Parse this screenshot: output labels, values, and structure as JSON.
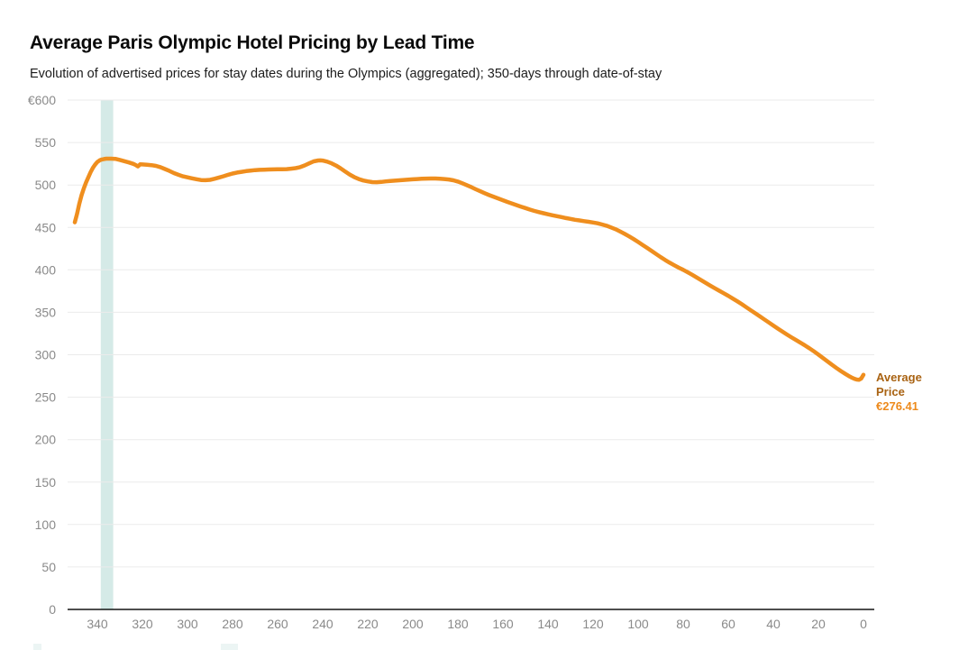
{
  "header": {
    "title": "Average Paris Olympic Hotel Pricing by Lead Time",
    "subtitle": "Evolution of advertised prices for stay dates during the Olympics (aggregated); 350-days through date-of-stay"
  },
  "end_label": {
    "line1": "Average",
    "line2": "Price",
    "value": "€276.41"
  },
  "colors": {
    "line": "#EF8E1E",
    "label_name": "#A96313",
    "label_value": "#ED8A1C",
    "band": "#D5EAE7",
    "grid": "#EBEBEB",
    "axis_line": "#141414",
    "tick_text": "#8A8A8A",
    "artifact": "#ECF5F4"
  },
  "chart_data": {
    "type": "line",
    "title": "Average Paris Olympic Hotel Pricing by Lead Time",
    "subtitle": "Evolution of advertised prices for stay dates during the Olympics (aggregated); 350-days through date-of-stay",
    "xlabel": "",
    "ylabel": "",
    "x_unit": "days before stay (lead time)",
    "x_direction": "descending",
    "xlim_lead_days": [
      350,
      0
    ],
    "ylim": [
      0,
      600
    ],
    "grid": "horizontal-only",
    "legend_position": "right-of-line-end",
    "x_ticks": [
      340,
      320,
      300,
      280,
      260,
      240,
      220,
      200,
      180,
      160,
      140,
      120,
      100,
      80,
      60,
      40,
      20,
      0
    ],
    "y_ticks": [
      {
        "value": 600,
        "label": "€600"
      },
      {
        "value": 550,
        "label": "550"
      },
      {
        "value": 500,
        "label": "500"
      },
      {
        "value": 450,
        "label": "450"
      },
      {
        "value": 400,
        "label": "400"
      },
      {
        "value": 350,
        "label": "350"
      },
      {
        "value": 300,
        "label": "300"
      },
      {
        "value": 250,
        "label": "250"
      },
      {
        "value": 200,
        "label": "200"
      },
      {
        "value": 150,
        "label": "150"
      },
      {
        "value": 100,
        "label": "100"
      },
      {
        "value": 50,
        "label": "50"
      },
      {
        "value": 0,
        "label": "0"
      }
    ],
    "highlight_band_leads": [
      338.5,
      333
    ],
    "series": [
      {
        "name": "Average Price",
        "final_value": 276.41,
        "points": [
          [
            350,
            456
          ],
          [
            349,
            466
          ],
          [
            348,
            478
          ],
          [
            347,
            488
          ],
          [
            346,
            496
          ],
          [
            345,
            503
          ],
          [
            344,
            509
          ],
          [
            343,
            515
          ],
          [
            342,
            520
          ],
          [
            341,
            524
          ],
          [
            340,
            527
          ],
          [
            339,
            529
          ],
          [
            338,
            530
          ],
          [
            337,
            530.6
          ],
          [
            336,
            531
          ],
          [
            334,
            531
          ],
          [
            332,
            530.8
          ],
          [
            330,
            529.5
          ],
          [
            328,
            528
          ],
          [
            326,
            526.5
          ],
          [
            324,
            524.8
          ],
          [
            323,
            523.5
          ],
          [
            322,
            521.8
          ],
          [
            321,
            524.3
          ],
          [
            320,
            524.2
          ],
          [
            318,
            523.8
          ],
          [
            316,
            523.3
          ],
          [
            314,
            522.5
          ],
          [
            312,
            521
          ],
          [
            310,
            518.8
          ],
          [
            308,
            516.5
          ],
          [
            306,
            514
          ],
          [
            304,
            512
          ],
          [
            302,
            510.2
          ],
          [
            300,
            509
          ],
          [
            298,
            507.8
          ],
          [
            296,
            506.8
          ],
          [
            294,
            505.8
          ],
          [
            292,
            505.6
          ],
          [
            290,
            506
          ],
          [
            288,
            507.3
          ],
          [
            286,
            508.8
          ],
          [
            284,
            510.3
          ],
          [
            282,
            512
          ],
          [
            280,
            513.4
          ],
          [
            278,
            514.6
          ],
          [
            276,
            515.5
          ],
          [
            274,
            516.3
          ],
          [
            272,
            516.9
          ],
          [
            270,
            517.5
          ],
          [
            268,
            517.8
          ],
          [
            266,
            518
          ],
          [
            264,
            518.2
          ],
          [
            262,
            518.3
          ],
          [
            260,
            518.5
          ],
          [
            258,
            518.6
          ],
          [
            256,
            518.7
          ],
          [
            254,
            519.2
          ],
          [
            252,
            519.8
          ],
          [
            250,
            521
          ],
          [
            248,
            523
          ],
          [
            246,
            525.5
          ],
          [
            244,
            527.8
          ],
          [
            242,
            528.9
          ],
          [
            241,
            529
          ],
          [
            240,
            528.7
          ],
          [
            238,
            527.5
          ],
          [
            236,
            525.5
          ],
          [
            234,
            522.8
          ],
          [
            232,
            519.5
          ],
          [
            230,
            515.8
          ],
          [
            228,
            512.3
          ],
          [
            226,
            509.3
          ],
          [
            224,
            507
          ],
          [
            222,
            505.3
          ],
          [
            220,
            504.2
          ],
          [
            218,
            503.4
          ],
          [
            216,
            503.3
          ],
          [
            214,
            503.6
          ],
          [
            212,
            504.2
          ],
          [
            210,
            504.7
          ],
          [
            208,
            505.1
          ],
          [
            206,
            505.5
          ],
          [
            204,
            505.9
          ],
          [
            202,
            506.3
          ],
          [
            200,
            506.7
          ],
          [
            198,
            507
          ],
          [
            196,
            507.3
          ],
          [
            194,
            507.5
          ],
          [
            192,
            507.6
          ],
          [
            190,
            507.6
          ],
          [
            188,
            507.4
          ],
          [
            186,
            507
          ],
          [
            184,
            506.4
          ],
          [
            182,
            505.5
          ],
          [
            180,
            504
          ],
          [
            178,
            502
          ],
          [
            176,
            499.8
          ],
          [
            174,
            497.4
          ],
          [
            172,
            494.9
          ],
          [
            170,
            492.5
          ],
          [
            168,
            490.2
          ],
          [
            166,
            488
          ],
          [
            164,
            485.9
          ],
          [
            162,
            484
          ],
          [
            160,
            482
          ],
          [
            158,
            480
          ],
          [
            156,
            478.2
          ],
          [
            154,
            476.3
          ],
          [
            152,
            474.5
          ],
          [
            150,
            472.8
          ],
          [
            148,
            471
          ],
          [
            146,
            469.4
          ],
          [
            144,
            468
          ],
          [
            142,
            466.7
          ],
          [
            140,
            465.5
          ],
          [
            138,
            464.3
          ],
          [
            136,
            463.2
          ],
          [
            134,
            462.2
          ],
          [
            132,
            461
          ],
          [
            130,
            460
          ],
          [
            128,
            459
          ],
          [
            126,
            458.2
          ],
          [
            124,
            457.4
          ],
          [
            122,
            456.6
          ],
          [
            120,
            455.8
          ],
          [
            118,
            454.8
          ],
          [
            116,
            453.5
          ],
          [
            114,
            452
          ],
          [
            112,
            450
          ],
          [
            110,
            447.8
          ],
          [
            108,
            445.2
          ],
          [
            106,
            442.4
          ],
          [
            104,
            439.4
          ],
          [
            102,
            436.2
          ],
          [
            100,
            432.8
          ],
          [
            98,
            429.3
          ],
          [
            96,
            425.8
          ],
          [
            94,
            422.2
          ],
          [
            92,
            418.6
          ],
          [
            90,
            415
          ],
          [
            88,
            411.6
          ],
          [
            86,
            408.4
          ],
          [
            84,
            405.4
          ],
          [
            82,
            402.6
          ],
          [
            80,
            400
          ],
          [
            78,
            397.2
          ],
          [
            76,
            394.2
          ],
          [
            74,
            391
          ],
          [
            72,
            387.8
          ],
          [
            70,
            384.6
          ],
          [
            68,
            381.5
          ],
          [
            66,
            378.4
          ],
          [
            64,
            375.4
          ],
          [
            62,
            372.4
          ],
          [
            60,
            369.4
          ],
          [
            58,
            366.2
          ],
          [
            56,
            363
          ],
          [
            54,
            359.6
          ],
          [
            52,
            356
          ],
          [
            50,
            352.4
          ],
          [
            48,
            348.8
          ],
          [
            46,
            345.2
          ],
          [
            44,
            341.6
          ],
          [
            42,
            338
          ],
          [
            40,
            334.4
          ],
          [
            38,
            330.8
          ],
          [
            36,
            327.3
          ],
          [
            34,
            323.9
          ],
          [
            32,
            320.6
          ],
          [
            30,
            317.4
          ],
          [
            28,
            314.2
          ],
          [
            26,
            311
          ],
          [
            24,
            307.6
          ],
          [
            22,
            304
          ],
          [
            20,
            300.2
          ],
          [
            18,
            296.2
          ],
          [
            16,
            292.2
          ],
          [
            14,
            288.2
          ],
          [
            12,
            284.4
          ],
          [
            10,
            280.8
          ],
          [
            8,
            277.4
          ],
          [
            6,
            274.2
          ],
          [
            5,
            272.8
          ],
          [
            4,
            271.6
          ],
          [
            3,
            270.8
          ],
          [
            2,
            270.5
          ],
          [
            1,
            272
          ],
          [
            0,
            276.41
          ]
        ]
      }
    ]
  }
}
